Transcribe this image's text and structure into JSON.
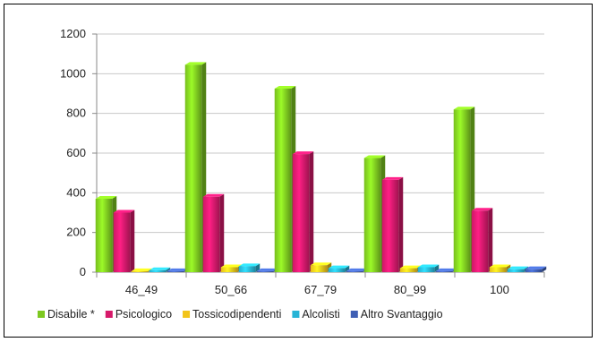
{
  "chart_data": {
    "type": "bar",
    "title": "",
    "xlabel": "",
    "ylabel": "",
    "categories": [
      "46_49",
      "50_66",
      "67_79",
      "80_99",
      "100"
    ],
    "ylim": [
      0,
      1200
    ],
    "yticks": [
      "0",
      "200",
      "400",
      "600",
      "800",
      "1000",
      "1200"
    ],
    "grid": true,
    "legend_position": "bottom",
    "series": [
      {
        "name": "Disabile *",
        "color": "#7dc820",
        "values": [
          370,
          1045,
          925,
          575,
          820
        ]
      },
      {
        "name": "Psicologico",
        "color": "#d6196a",
        "values": [
          300,
          380,
          595,
          465,
          310
        ]
      },
      {
        "name": "Tossicodipendenti",
        "color": "#f2c41a",
        "values": [
          5,
          25,
          35,
          20,
          25
        ]
      },
      {
        "name": "Alcolisti",
        "color": "#27b4d6",
        "values": [
          10,
          30,
          20,
          25,
          15
        ]
      },
      {
        "name": "Altro Svantaggio",
        "color": "#3f5fb4",
        "values": [
          5,
          5,
          5,
          5,
          15
        ]
      }
    ]
  }
}
